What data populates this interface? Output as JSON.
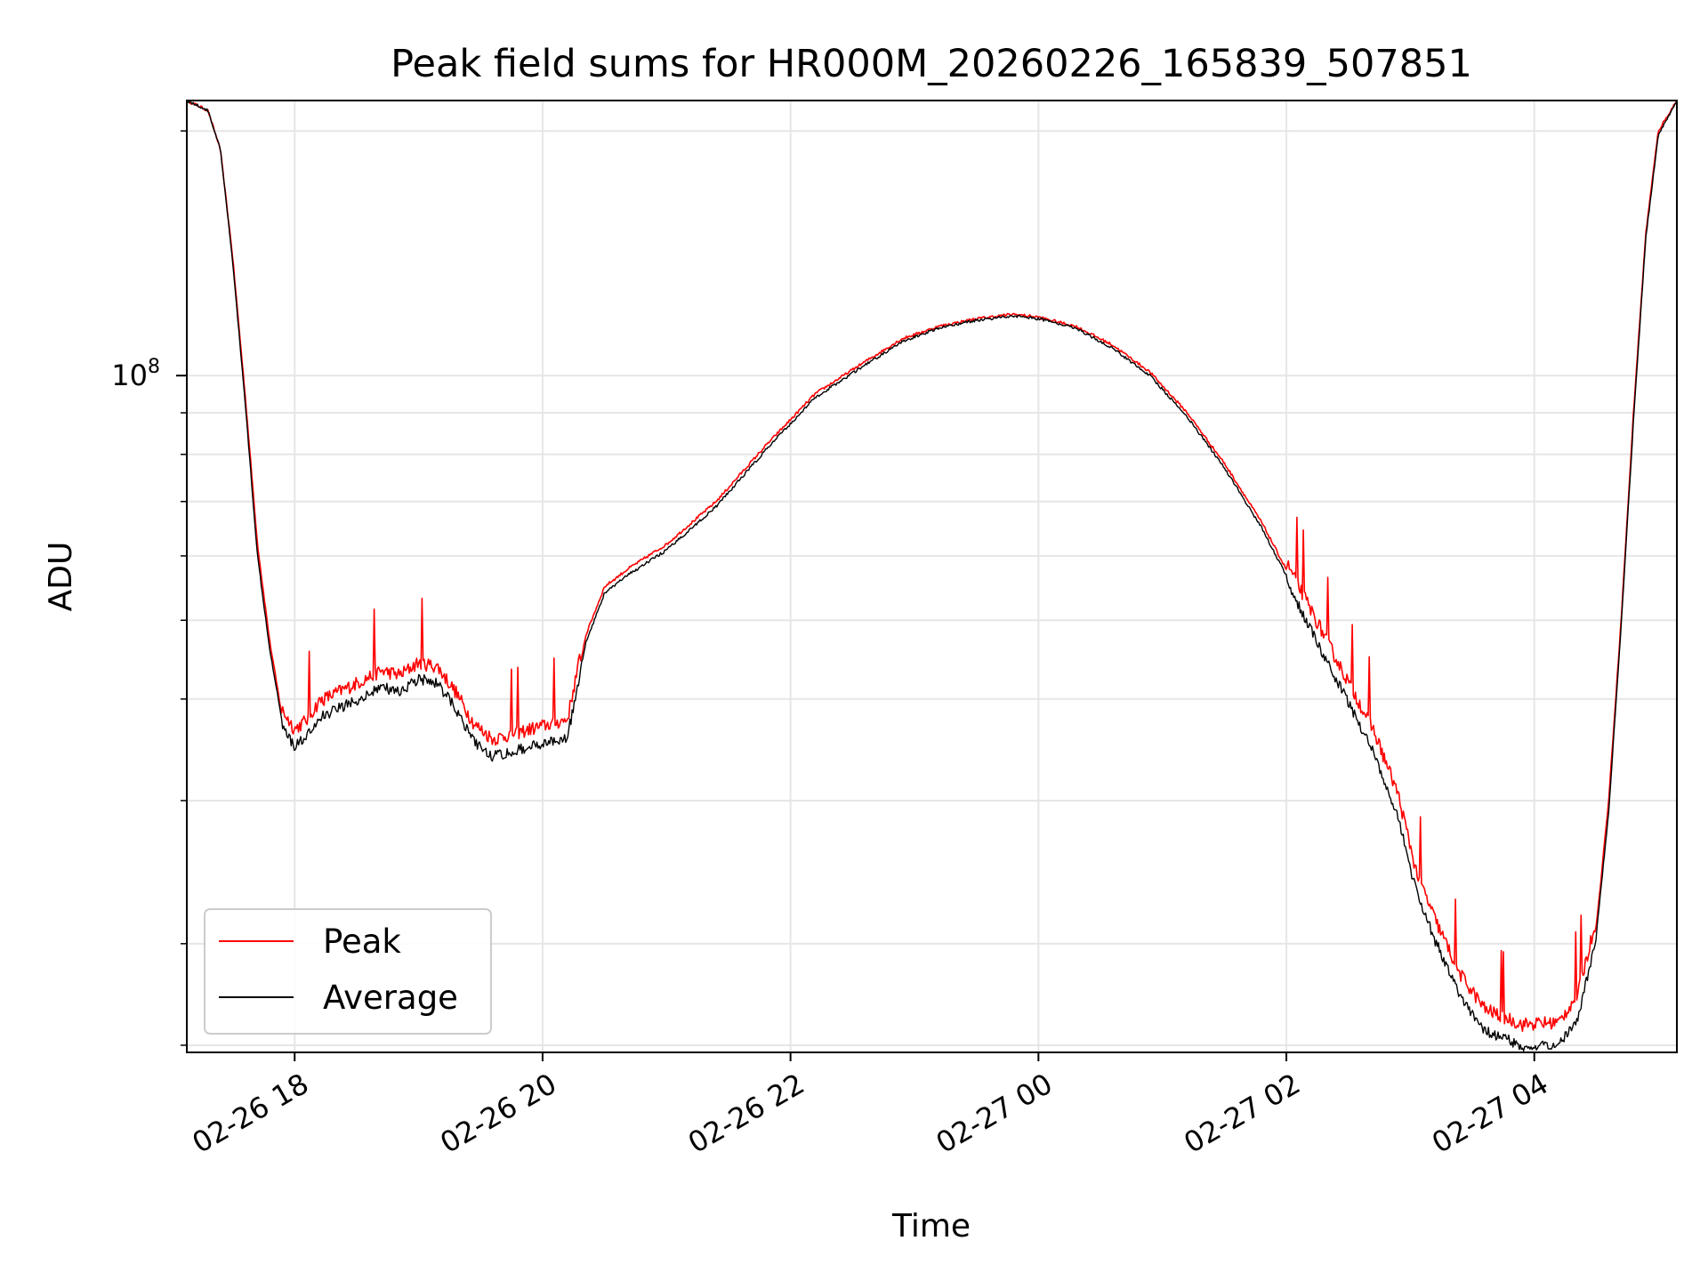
{
  "chart_data": {
    "type": "line",
    "title": "Peak field sums for HR000M_20260226_165839_507851",
    "xlabel": "Time",
    "ylabel": "ADU",
    "yscale": "log",
    "ylim": [
      14700000,
      218000000
    ],
    "xlim_hours": [
      17.13,
      29.15
    ],
    "x_unit": "hours since 2026-02-26 00:00",
    "grid": true,
    "legend_position": "lower-left",
    "x_ticks": [
      {
        "label": "02-26 18",
        "value": 18
      },
      {
        "label": "02-26 20",
        "value": 20
      },
      {
        "label": "02-26 22",
        "value": 22
      },
      {
        "label": "02-27 00",
        "value": 24
      },
      {
        "label": "02-27 02",
        "value": 26
      },
      {
        "label": "02-27 04",
        "value": 28
      }
    ],
    "y_major_ticks": [
      {
        "base": "10",
        "exponent": "8",
        "value": 100000000
      }
    ],
    "y_minor_ticks": [
      15000000,
      20000000,
      30000000,
      40000000,
      50000000,
      60000000,
      70000000,
      80000000,
      90000000,
      200000000
    ],
    "series": [
      {
        "name": "Peak",
        "color": "#ff0000",
        "points": [
          [
            17.13,
            218000000
          ],
          [
            17.3,
            212000000
          ],
          [
            17.4,
            190000000
          ],
          [
            17.5,
            140000000
          ],
          [
            17.6,
            95000000
          ],
          [
            17.7,
            62000000
          ],
          [
            17.8,
            47000000
          ],
          [
            17.9,
            38000000
          ],
          [
            18.0,
            36000000
          ],
          [
            18.1,
            37000000
          ],
          [
            18.2,
            39000000
          ],
          [
            18.35,
            40000000
          ],
          [
            18.5,
            41000000
          ],
          [
            18.7,
            42500000
          ],
          [
            18.85,
            42000000
          ],
          [
            19.0,
            43500000
          ],
          [
            19.15,
            43000000
          ],
          [
            19.3,
            40000000
          ],
          [
            19.45,
            36500000
          ],
          [
            19.6,
            35000000
          ],
          [
            19.75,
            35500000
          ],
          [
            19.9,
            36000000
          ],
          [
            20.05,
            36500000
          ],
          [
            20.2,
            37000000
          ],
          [
            20.35,
            48000000
          ],
          [
            20.5,
            55000000
          ],
          [
            20.7,
            58000000
          ],
          [
            21.0,
            62000000
          ],
          [
            21.4,
            70000000
          ],
          [
            21.8,
            82000000
          ],
          [
            22.2,
            95000000
          ],
          [
            22.6,
            104000000
          ],
          [
            22.9,
            111000000
          ],
          [
            23.2,
            115000000
          ],
          [
            23.5,
            117500000
          ],
          [
            23.8,
            119000000
          ],
          [
            24.0,
            118000000
          ],
          [
            24.3,
            115000000
          ],
          [
            24.6,
            109000000
          ],
          [
            24.9,
            101000000
          ],
          [
            25.2,
            90000000
          ],
          [
            25.5,
            78000000
          ],
          [
            25.8,
            66000000
          ],
          [
            26.1,
            54000000
          ],
          [
            26.4,
            44000000
          ],
          [
            26.7,
            36000000
          ],
          [
            26.9,
            30000000
          ],
          [
            27.05,
            24000000
          ],
          [
            27.2,
            21000000
          ],
          [
            27.4,
            18000000
          ],
          [
            27.6,
            16300000
          ],
          [
            27.9,
            15600000
          ],
          [
            28.2,
            15700000
          ],
          [
            28.35,
            17000000
          ],
          [
            28.5,
            21000000
          ],
          [
            28.6,
            30000000
          ],
          [
            28.7,
            50000000
          ],
          [
            28.8,
            90000000
          ],
          [
            28.9,
            150000000
          ],
          [
            29.0,
            200000000
          ],
          [
            29.15,
            218000000
          ]
        ]
      },
      {
        "name": "Average",
        "color": "#000000",
        "points": [
          [
            17.13,
            218000000
          ],
          [
            17.3,
            212000000
          ],
          [
            17.4,
            190000000
          ],
          [
            17.5,
            138000000
          ],
          [
            17.6,
            93000000
          ],
          [
            17.7,
            60000000
          ],
          [
            17.8,
            46000000
          ],
          [
            17.9,
            37500000
          ],
          [
            18.0,
            35500000
          ],
          [
            18.1,
            36500000
          ],
          [
            18.2,
            38500000
          ],
          [
            18.35,
            39500000
          ],
          [
            18.5,
            40500000
          ],
          [
            18.7,
            42000000
          ],
          [
            18.85,
            41500000
          ],
          [
            19.0,
            43000000
          ],
          [
            19.15,
            42500000
          ],
          [
            19.3,
            39500000
          ],
          [
            19.45,
            36000000
          ],
          [
            19.6,
            34500000
          ],
          [
            19.75,
            35000000
          ],
          [
            19.9,
            35500000
          ],
          [
            20.05,
            36000000
          ],
          [
            20.2,
            36500000
          ],
          [
            20.35,
            47000000
          ],
          [
            20.5,
            54000000
          ],
          [
            20.7,
            57000000
          ],
          [
            21.0,
            61000000
          ],
          [
            21.4,
            69000000
          ],
          [
            21.8,
            81000000
          ],
          [
            22.2,
            94000000
          ],
          [
            22.6,
            103000000
          ],
          [
            22.9,
            110000000
          ],
          [
            23.2,
            114500000
          ],
          [
            23.5,
            117000000
          ],
          [
            23.8,
            118500000
          ],
          [
            24.0,
            117500000
          ],
          [
            24.3,
            114500000
          ],
          [
            24.6,
            108000000
          ],
          [
            24.9,
            100000000
          ],
          [
            25.2,
            89000000
          ],
          [
            25.5,
            77000000
          ],
          [
            25.8,
            65000000
          ],
          [
            26.1,
            53000000
          ],
          [
            26.4,
            43000000
          ],
          [
            26.7,
            35000000
          ],
          [
            26.9,
            29000000
          ],
          [
            27.05,
            23500000
          ],
          [
            27.2,
            20500000
          ],
          [
            27.4,
            17500000
          ],
          [
            27.6,
            15900000
          ],
          [
            27.9,
            15200000
          ],
          [
            28.2,
            15300000
          ],
          [
            28.35,
            16500000
          ],
          [
            28.5,
            20500000
          ],
          [
            28.6,
            29000000
          ],
          [
            28.7,
            49000000
          ],
          [
            28.8,
            88000000
          ],
          [
            28.9,
            148000000
          ],
          [
            29.0,
            198000000
          ],
          [
            29.15,
            218000000
          ]
        ]
      }
    ]
  }
}
